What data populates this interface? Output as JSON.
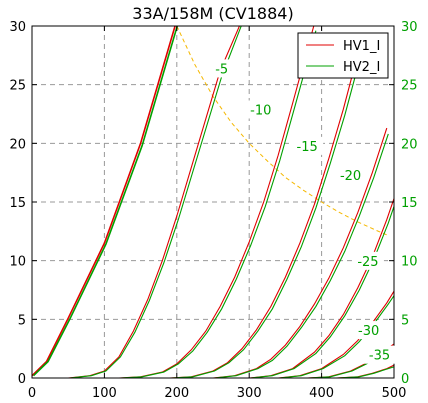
{
  "chart_data": {
    "type": "line",
    "title": "33A/158M (CV1884)",
    "xlabel": "",
    "ylabel": "",
    "xlim": [
      0,
      500
    ],
    "ylim": [
      0,
      30
    ],
    "x_ticks": [
      "0",
      "100",
      "200",
      "300",
      "400",
      "500"
    ],
    "y_ticks": [
      "0",
      "5",
      "10",
      "15",
      "20",
      "25",
      "30"
    ],
    "y2_ticks": [
      "0",
      "5",
      "10",
      "15",
      "20",
      "25",
      "30"
    ],
    "grid": true,
    "legend": {
      "placement": "top-right",
      "entries": [
        "HV1_I",
        "HV2_I"
      ]
    },
    "colors": {
      "HV1_I": "#e00000",
      "HV2_I": "#00a000",
      "max_dissipation": "#f5b800",
      "grid": "#999999",
      "right_axis_text": "#00a000"
    },
    "curve_labels": [
      {
        "text": "-5",
        "x": 262,
        "y": 26.3
      },
      {
        "text": "-10",
        "x": 316,
        "y": 22.8
      },
      {
        "text": "-15",
        "x": 380,
        "y": 19.7
      },
      {
        "text": "-20",
        "x": 440,
        "y": 17.2
      },
      {
        "text": "-25",
        "x": 464,
        "y": 9.9
      },
      {
        "text": "-30",
        "x": 465,
        "y": 4.0
      },
      {
        "text": "-35",
        "x": 480,
        "y": 1.9
      }
    ],
    "series": [
      {
        "name": "HV1_I",
        "grid_voltage": 0,
        "x": [
          0,
          20,
          50,
          100,
          150,
          200
        ],
        "y": [
          0.2,
          1.4,
          5.1,
          11.5,
          20.0,
          30.6
        ]
      },
      {
        "name": "HV1_I",
        "grid_voltage": -5,
        "x": [
          50,
          80,
          100,
          120,
          140,
          160,
          180,
          200,
          230,
          260,
          290
        ],
        "y": [
          0,
          0.2,
          0.6,
          1.8,
          4.0,
          6.7,
          10.0,
          13.8,
          20.0,
          26.2,
          32.0
        ]
      },
      {
        "name": "HV1_I",
        "grid_voltage": -10,
        "x": [
          120,
          150,
          180,
          200,
          220,
          240,
          260,
          280,
          300,
          320,
          340,
          360,
          390
        ],
        "y": [
          0,
          0.1,
          0.5,
          1.2,
          2.4,
          4.0,
          6.1,
          8.6,
          11.6,
          15.0,
          19.0,
          23.4,
          30.2
        ]
      },
      {
        "name": "HV1_I",
        "grid_voltage": -15,
        "x": [
          190,
          220,
          250,
          270,
          290,
          310,
          330,
          350,
          370,
          390,
          410,
          430,
          450
        ],
        "y": [
          0,
          0.1,
          0.6,
          1.3,
          2.5,
          4.1,
          6.1,
          8.6,
          11.5,
          14.8,
          18.7,
          22.9,
          27.6
        ]
      },
      {
        "name": "HV1_I",
        "grid_voltage": -20,
        "x": [
          250,
          280,
          310,
          330,
          350,
          370,
          390,
          410,
          430,
          450,
          470,
          490
        ],
        "y": [
          0,
          0.2,
          0.8,
          1.6,
          2.8,
          4.4,
          6.3,
          8.5,
          11.1,
          14.1,
          17.5,
          21.3
        ]
      },
      {
        "name": "HV1_I",
        "grid_voltage": -25,
        "x": [
          300,
          330,
          360,
          390,
          410,
          430,
          450,
          470,
          490,
          500
        ],
        "y": [
          0,
          0.2,
          0.8,
          2.2,
          3.6,
          5.4,
          7.7,
          10.3,
          13.5,
          15.3
        ]
      },
      {
        "name": "HV1_I",
        "grid_voltage": -30,
        "x": [
          340,
          370,
          400,
          430,
          450,
          470,
          490,
          500
        ],
        "y": [
          0,
          0.2,
          0.8,
          2.0,
          3.2,
          4.7,
          6.4,
          7.4
        ]
      },
      {
        "name": "HV1_I",
        "grid_voltage": -35,
        "x": [
          380,
          410,
          440,
          460,
          480,
          500
        ],
        "y": [
          0,
          0.1,
          0.6,
          1.2,
          2.0,
          2.9
        ]
      },
      {
        "name": "HV1_I",
        "grid_voltage": -40,
        "x": [
          420,
          450,
          470,
          490,
          500
        ],
        "y": [
          0,
          0.1,
          0.4,
          0.8,
          1.1
        ]
      },
      {
        "name": "HV2_I",
        "grid_voltage": 0,
        "x": [
          0,
          20,
          50,
          100,
          150,
          200
        ],
        "y": [
          0.2,
          1.4,
          5.0,
          11.4,
          19.8,
          30.3
        ]
      },
      {
        "name": "HV2_I",
        "grid_voltage": -5,
        "x": [
          50,
          80,
          100,
          120,
          140,
          160,
          180,
          200,
          230,
          260,
          290
        ],
        "y": [
          0,
          0.2,
          0.6,
          1.8,
          3.9,
          6.6,
          9.8,
          13.5,
          19.6,
          25.7,
          31.5
        ]
      },
      {
        "name": "HV2_I",
        "grid_voltage": -10,
        "x": [
          120,
          150,
          180,
          200,
          220,
          240,
          260,
          280,
          300,
          320,
          340,
          360,
          390
        ],
        "y": [
          0,
          0.1,
          0.5,
          1.2,
          2.3,
          3.9,
          5.9,
          8.4,
          11.3,
          14.6,
          18.5,
          22.9,
          29.6
        ]
      },
      {
        "name": "HV2_I",
        "grid_voltage": -15,
        "x": [
          190,
          220,
          250,
          270,
          290,
          310,
          330,
          350,
          370,
          390,
          410,
          430,
          450
        ],
        "y": [
          0,
          0.1,
          0.6,
          1.3,
          2.4,
          4.0,
          5.9,
          8.4,
          11.2,
          14.5,
          18.3,
          22.4,
          27.0
        ]
      },
      {
        "name": "HV2_I",
        "grid_voltage": -20,
        "x": [
          250,
          280,
          310,
          330,
          350,
          370,
          390,
          410,
          430,
          450,
          470,
          490
        ],
        "y": [
          0,
          0.2,
          0.8,
          1.5,
          2.7,
          4.3,
          6.1,
          8.3,
          10.8,
          13.8,
          17.1,
          20.8
        ]
      },
      {
        "name": "HV2_I",
        "grid_voltage": -25,
        "x": [
          300,
          330,
          360,
          390,
          410,
          430,
          450,
          470,
          490,
          500
        ],
        "y": [
          0,
          0.2,
          0.8,
          2.1,
          3.5,
          5.3,
          7.5,
          10.1,
          13.2,
          15.0
        ]
      },
      {
        "name": "HV2_I",
        "grid_voltage": -30,
        "x": [
          340,
          370,
          400,
          430,
          450,
          470,
          490,
          500
        ],
        "y": [
          0,
          0.2,
          0.8,
          1.9,
          3.1,
          4.6,
          6.3,
          7.2
        ]
      },
      {
        "name": "HV2_I",
        "grid_voltage": -35,
        "x": [
          380,
          410,
          440,
          460,
          480,
          500
        ],
        "y": [
          0,
          0.1,
          0.6,
          1.2,
          1.9,
          2.8
        ]
      },
      {
        "name": "HV2_I",
        "grid_voltage": -40,
        "x": [
          420,
          450,
          470,
          490,
          500
        ],
        "y": [
          0,
          0.1,
          0.4,
          0.8,
          1.0
        ]
      }
    ],
    "max_dissipation_curve": {
      "x": [
        200,
        225,
        250,
        275,
        300,
        325,
        350,
        375,
        400,
        425,
        450,
        475,
        490
      ],
      "y": [
        30.0,
        26.7,
        24.0,
        21.8,
        20.0,
        18.5,
        17.1,
        16.0,
        15.0,
        14.1,
        13.3,
        12.6,
        12.2
      ]
    }
  }
}
